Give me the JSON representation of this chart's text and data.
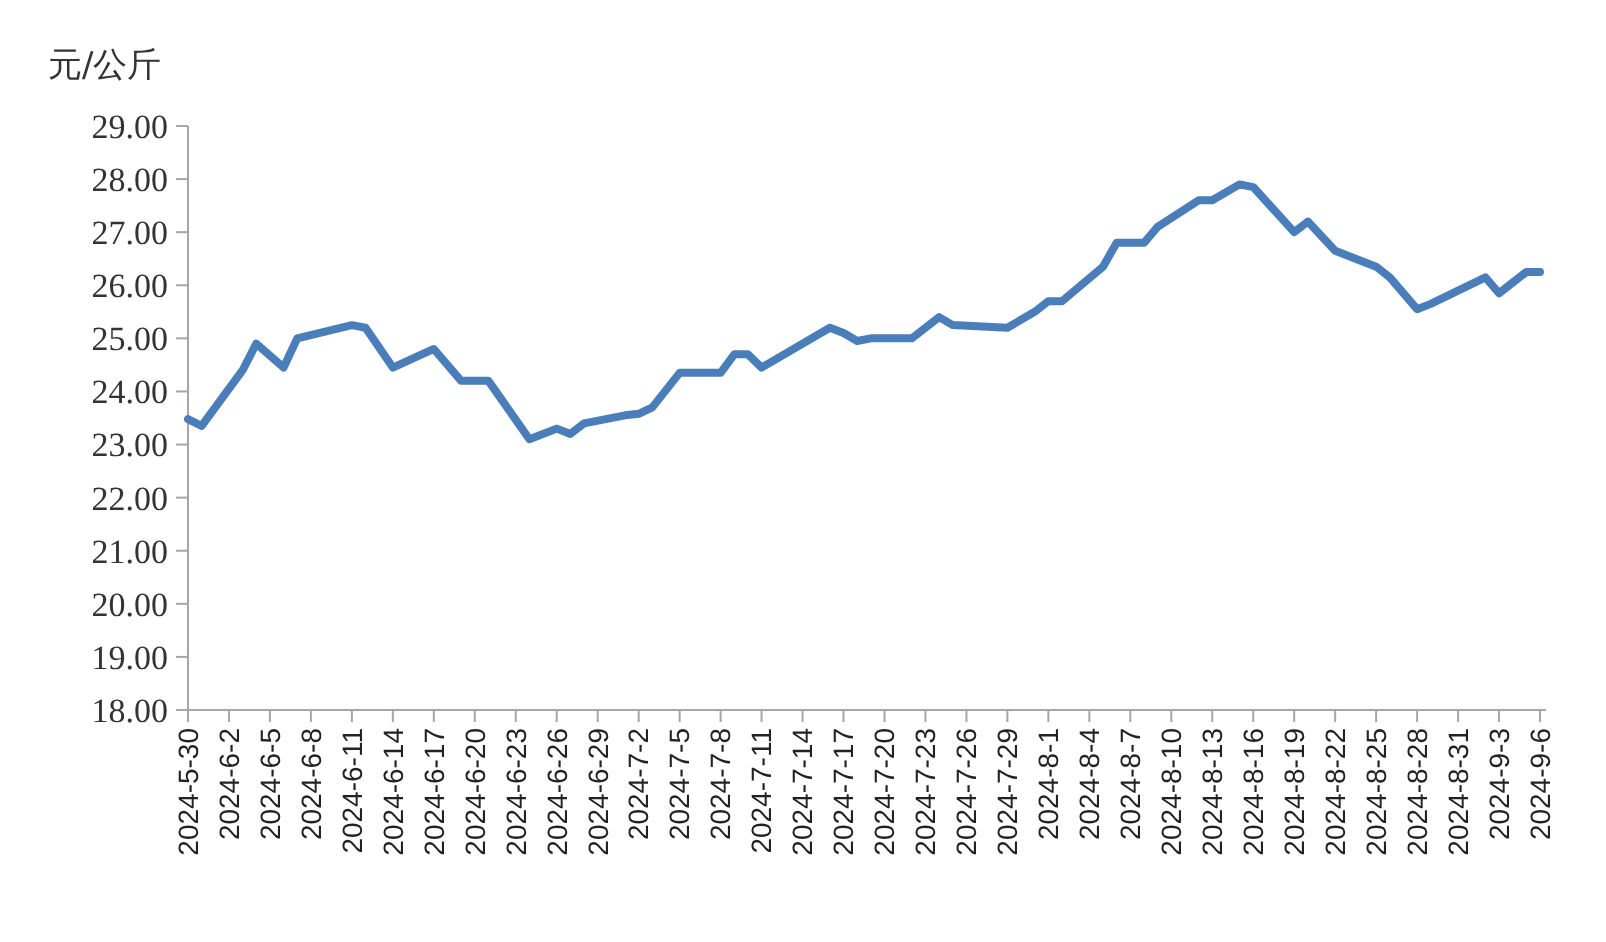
{
  "chart_data": {
    "type": "line",
    "ylabel": "元/公斤",
    "x": [
      "2024-05-30",
      "2024-05-31",
      "2024-06-03",
      "2024-06-04",
      "2024-06-06",
      "2024-06-07",
      "2024-06-11",
      "2024-06-12",
      "2024-06-14",
      "2024-06-17",
      "2024-06-19",
      "2024-06-21",
      "2024-06-24",
      "2024-06-26",
      "2024-06-27",
      "2024-06-28",
      "2024-07-01",
      "2024-07-02",
      "2024-07-03",
      "2024-07-05",
      "2024-07-08",
      "2024-07-09",
      "2024-07-10",
      "2024-07-11",
      "2024-07-16",
      "2024-07-17",
      "2024-07-18",
      "2024-07-19",
      "2024-07-22",
      "2024-07-24",
      "2024-07-25",
      "2024-07-29",
      "2024-07-31",
      "2024-08-01",
      "2024-08-02",
      "2024-08-05",
      "2024-08-06",
      "2024-08-08",
      "2024-08-09",
      "2024-08-12",
      "2024-08-13",
      "2024-08-15",
      "2024-08-16",
      "2024-08-19",
      "2024-08-20",
      "2024-08-22",
      "2024-08-25",
      "2024-08-26",
      "2024-08-28",
      "2024-08-29",
      "2024-09-02",
      "2024-09-03",
      "2024-09-05",
      "2024-09-06"
    ],
    "series": [
      {
        "color": "#4a7ebb",
        "values": [
          23.48,
          23.35,
          24.4,
          24.9,
          24.45,
          25.0,
          25.25,
          25.2,
          24.45,
          24.8,
          24.2,
          24.2,
          23.1,
          23.3,
          23.2,
          23.4,
          23.55,
          23.58,
          23.7,
          24.35,
          24.35,
          24.7,
          24.7,
          24.45,
          25.2,
          25.1,
          24.95,
          25.0,
          25.0,
          25.4,
          25.25,
          25.2,
          25.5,
          25.7,
          25.7,
          26.35,
          26.8,
          26.8,
          27.1,
          27.6,
          27.6,
          27.9,
          27.85,
          27.0,
          27.2,
          26.65,
          26.35,
          26.15,
          25.55,
          25.65,
          26.15,
          25.85,
          26.25,
          26.25
        ]
      }
    ],
    "xlim": [
      "2024-05-30",
      "2024-09-06"
    ],
    "xticks": [
      {
        "value": "2024-05-30",
        "label": "2024-5-30"
      },
      {
        "value": "2024-06-02",
        "label": "2024-6-2"
      },
      {
        "value": "2024-06-05",
        "label": "2024-6-5"
      },
      {
        "value": "2024-06-08",
        "label": "2024-6-8"
      },
      {
        "value": "2024-06-11",
        "label": "2024-6-11"
      },
      {
        "value": "2024-06-14",
        "label": "2024-6-14"
      },
      {
        "value": "2024-06-17",
        "label": "2024-6-17"
      },
      {
        "value": "2024-06-20",
        "label": "2024-6-20"
      },
      {
        "value": "2024-06-23",
        "label": "2024-6-23"
      },
      {
        "value": "2024-06-26",
        "label": "2024-6-26"
      },
      {
        "value": "2024-06-29",
        "label": "2024-6-29"
      },
      {
        "value": "2024-07-02",
        "label": "2024-7-2"
      },
      {
        "value": "2024-07-05",
        "label": "2024-7-5"
      },
      {
        "value": "2024-07-08",
        "label": "2024-7-8"
      },
      {
        "value": "2024-07-11",
        "label": "2024-7-11"
      },
      {
        "value": "2024-07-14",
        "label": "2024-7-14"
      },
      {
        "value": "2024-07-17",
        "label": "2024-7-17"
      },
      {
        "value": "2024-07-20",
        "label": "2024-7-20"
      },
      {
        "value": "2024-07-23",
        "label": "2024-7-23"
      },
      {
        "value": "2024-07-26",
        "label": "2024-7-26"
      },
      {
        "value": "2024-07-29",
        "label": "2024-7-29"
      },
      {
        "value": "2024-08-01",
        "label": "2024-8-1"
      },
      {
        "value": "2024-08-04",
        "label": "2024-8-4"
      },
      {
        "value": "2024-08-07",
        "label": "2024-8-7"
      },
      {
        "value": "2024-08-10",
        "label": "2024-8-10"
      },
      {
        "value": "2024-08-13",
        "label": "2024-8-13"
      },
      {
        "value": "2024-08-16",
        "label": "2024-8-16"
      },
      {
        "value": "2024-08-19",
        "label": "2024-8-19"
      },
      {
        "value": "2024-08-22",
        "label": "2024-8-22"
      },
      {
        "value": "2024-08-25",
        "label": "2024-8-25"
      },
      {
        "value": "2024-08-28",
        "label": "2024-8-28"
      },
      {
        "value": "2024-08-31",
        "label": "2024-8-31"
      },
      {
        "value": "2024-09-03",
        "label": "2024-9-3"
      },
      {
        "value": "2024-09-06",
        "label": "2024-9-6"
      }
    ],
    "ylim": [
      18,
      29
    ],
    "yticks": [
      {
        "value": 18,
        "label": "18.00"
      },
      {
        "value": 19,
        "label": "19.00"
      },
      {
        "value": 20,
        "label": "20.00"
      },
      {
        "value": 21,
        "label": "21.00"
      },
      {
        "value": 22,
        "label": "22.00"
      },
      {
        "value": 23,
        "label": "23.00"
      },
      {
        "value": 24,
        "label": "24.00"
      },
      {
        "value": 25,
        "label": "25.00"
      },
      {
        "value": 26,
        "label": "26.00"
      },
      {
        "value": 27,
        "label": "27.00"
      },
      {
        "value": 28,
        "label": "28.00"
      },
      {
        "value": 29,
        "label": "29.00"
      }
    ],
    "grid": false,
    "marker": "none",
    "line_style": "solid"
  }
}
